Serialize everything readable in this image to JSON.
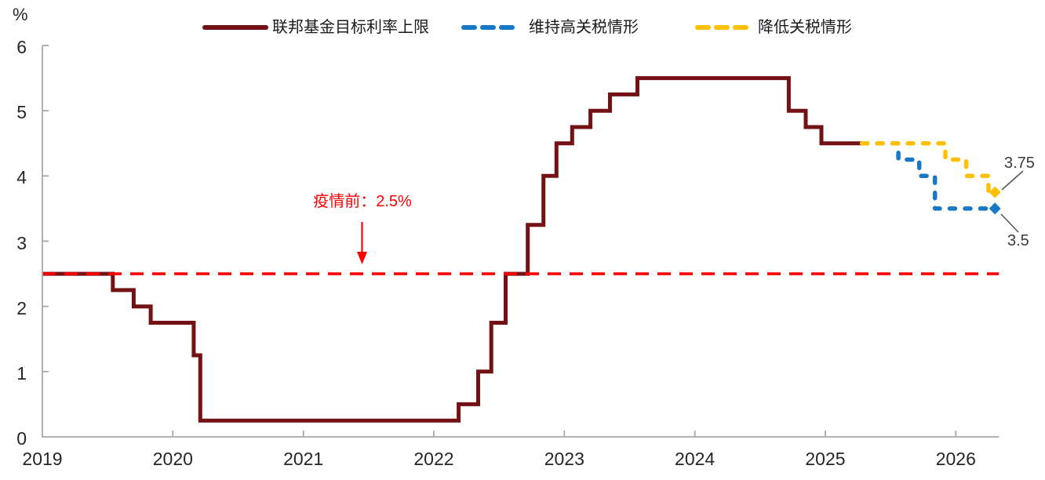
{
  "chart_data": {
    "type": "line",
    "title": "",
    "ylabel": "%",
    "xlabel": "",
    "ylim": [
      0,
      6
    ],
    "x_range": [
      2019,
      2026.33
    ],
    "y_ticks": [
      "0",
      "1",
      "2",
      "3",
      "4",
      "5",
      "6"
    ],
    "x_ticks": [
      "2019",
      "2020",
      "2021",
      "2022",
      "2023",
      "2024",
      "2025",
      "2026"
    ],
    "grid": "off",
    "legend_position": "top-center",
    "axis_color": "#a8a8a8",
    "text_color": "#262626",
    "series": [
      {
        "name": "联邦基金目标利率上限",
        "color": "#731114",
        "style": "solid",
        "interpolation": "step-after",
        "points": [
          [
            2019.0,
            2.5
          ],
          [
            2019.54,
            2.25
          ],
          [
            2019.7,
            2.0
          ],
          [
            2019.83,
            1.75
          ],
          [
            2020.16,
            1.25
          ],
          [
            2020.21,
            0.25
          ],
          [
            2022.19,
            0.5
          ],
          [
            2022.34,
            1.0
          ],
          [
            2022.44,
            1.75
          ],
          [
            2022.55,
            2.5
          ],
          [
            2022.72,
            3.25
          ],
          [
            2022.84,
            4.0
          ],
          [
            2022.94,
            4.5
          ],
          [
            2023.06,
            4.75
          ],
          [
            2023.2,
            5.0
          ],
          [
            2023.35,
            5.25
          ],
          [
            2023.56,
            5.5
          ],
          [
            2024.72,
            5.0
          ],
          [
            2024.85,
            4.75
          ],
          [
            2024.97,
            4.5
          ]
        ],
        "end_x": 2025.28
      },
      {
        "name": "维持高关税情形",
        "color": "#1778C6",
        "style": "dashed",
        "interpolation": "step-after",
        "points": [
          [
            2025.28,
            4.5
          ],
          [
            2025.56,
            4.25
          ],
          [
            2025.72,
            4.0
          ],
          [
            2025.84,
            3.5
          ]
        ],
        "end_x": 2026.3,
        "end_marker": "diamond",
        "end_value": 3.5
      },
      {
        "name": "降低关税情形",
        "color": "#FFC000",
        "style": "dashed",
        "interpolation": "step-after",
        "points": [
          [
            2025.28,
            4.5
          ],
          [
            2025.92,
            4.25
          ],
          [
            2026.08,
            4.0
          ],
          [
            2026.25,
            3.75
          ]
        ],
        "end_x": 2026.3,
        "end_marker": "diamond",
        "end_value": 3.75
      }
    ],
    "reference_line": {
      "y": 2.5,
      "color": "#FF0000",
      "style": "dashed"
    },
    "annotations": {
      "pre_pandemic": {
        "text": "疫情前：2.5%",
        "color": "#FF0000",
        "arrow": "down",
        "x": 2021.45,
        "points_to_y": 2.5
      },
      "end_label_high": "3.75",
      "end_label_low": "3.5"
    }
  }
}
